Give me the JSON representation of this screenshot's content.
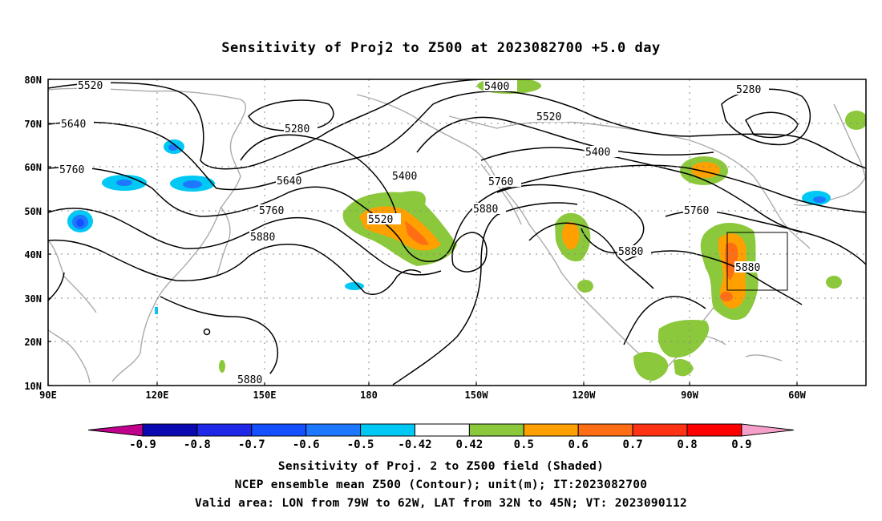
{
  "title": "Sensitivity of Proj2 to Z500 at 2023082700 +5.0 day",
  "map": {
    "lat_ticks": [
      "80N",
      "70N",
      "60N",
      "50N",
      "40N",
      "30N",
      "20N",
      "10N"
    ],
    "lon_ticks": [
      "90E",
      "120E",
      "150E",
      "180",
      "150W",
      "120W",
      "90W",
      "60W"
    ],
    "contour_labels": [
      "5520",
      "5640",
      "5760",
      "5280",
      "5400",
      "5520",
      "5400",
      "5280",
      "5640",
      "5400",
      "5760",
      "5520",
      "5760",
      "5880",
      "5880",
      "5760",
      "5880",
      "5880",
      "5880"
    ],
    "valid_box": {
      "lon_from": "79W",
      "lon_to": "62W",
      "lat_from": "32N",
      "lat_to": "45N"
    }
  },
  "colorbar": {
    "levels": [
      "-0.9",
      "-0.8",
      "-0.7",
      "-0.6",
      "-0.5",
      "-0.42",
      "0.42",
      "0.5",
      "0.6",
      "0.7",
      "0.8",
      "0.9"
    ],
    "colors": [
      "#c0008c",
      "#0a0ab0",
      "#1e28e6",
      "#1450ff",
      "#1e78ff",
      "#00c8f5",
      "#ffffff",
      "#8cc83c",
      "#ffa000",
      "#ff6e14",
      "#ff3214",
      "#ff0000",
      "#f5a0c8"
    ]
  },
  "footer": {
    "line1": "Sensitivity of Proj. 2 to Z500 field (Shaded)",
    "line2": "NCEP ensemble mean Z500 (Contour); unit(m); IT:2023082700",
    "line3": "Valid area: LON from 79W to 62W, LAT from 32N to 45N; VT: 2023090112"
  }
}
